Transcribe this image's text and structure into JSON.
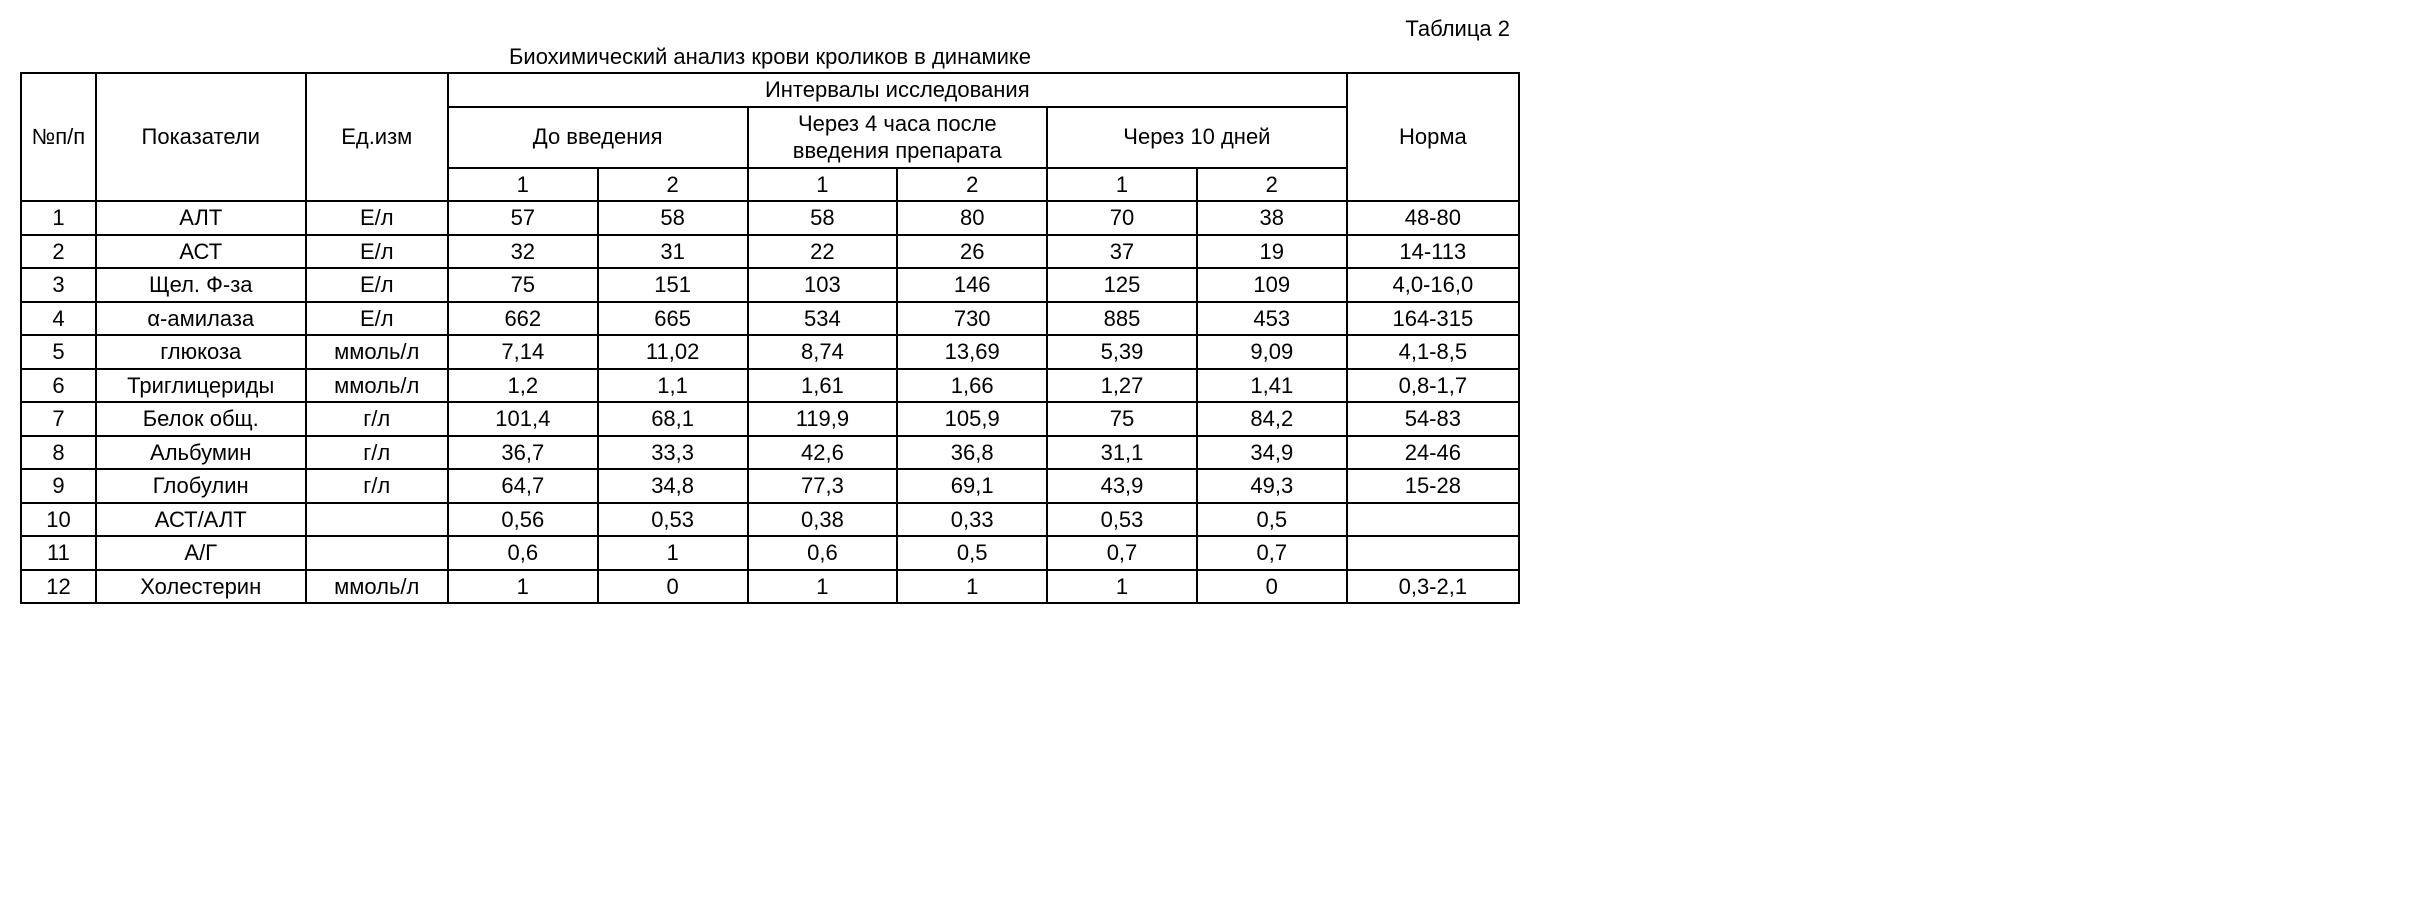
{
  "labels": {
    "table_number": "Таблица 2",
    "caption": "Биохимический анализ крови кроликов в динамике",
    "col_num": "№п/п",
    "col_indicator": "Показатели",
    "col_unit": "Ед.изм",
    "col_intervals": "Интервалы исследования",
    "col_norm": "Норма",
    "interval_before": "До введения",
    "interval_4h": "Через 4 часа после введения препарата",
    "interval_10d": "Через 10 дней",
    "sub_1": "1",
    "sub_2": "2"
  },
  "style": {
    "font_size_pt": 16,
    "border_color": "#000000",
    "background_color": "#ffffff",
    "text_color": "#000000"
  },
  "rows": [
    {
      "n": "1",
      "indicator": "АЛТ",
      "unit": "Е/л",
      "v": [
        "57",
        "58",
        "58",
        "80",
        "70",
        "38"
      ],
      "norm": "48-80"
    },
    {
      "n": "2",
      "indicator": "АСТ",
      "unit": "Е/л",
      "v": [
        "32",
        "31",
        "22",
        "26",
        "37",
        "19"
      ],
      "norm": "14-113"
    },
    {
      "n": "3",
      "indicator": "Щел. Ф-за",
      "unit": "Е/л",
      "v": [
        "75",
        "151",
        "103",
        "146",
        "125",
        "109"
      ],
      "norm": "4,0-16,0"
    },
    {
      "n": "4",
      "indicator": "α-амилаза",
      "unit": "Е/л",
      "v": [
        "662",
        "665",
        "534",
        "730",
        "885",
        "453"
      ],
      "norm": "164-315"
    },
    {
      "n": "5",
      "indicator": "глюкоза",
      "unit": "ммоль/л",
      "v": [
        "7,14",
        "11,02",
        "8,74",
        "13,69",
        "5,39",
        "9,09"
      ],
      "norm": "4,1-8,5"
    },
    {
      "n": "6",
      "indicator": "Триглицериды",
      "unit": "ммоль/л",
      "v": [
        "1,2",
        "1,1",
        "1,61",
        "1,66",
        "1,27",
        "1,41"
      ],
      "norm": "0,8-1,7"
    },
    {
      "n": "7",
      "indicator": "Белок общ.",
      "unit": "г/л",
      "v": [
        "101,4",
        "68,1",
        "119,9",
        "105,9",
        "75",
        "84,2"
      ],
      "norm": "54-83"
    },
    {
      "n": "8",
      "indicator": "Альбумин",
      "unit": "г/л",
      "v": [
        "36,7",
        "33,3",
        "42,6",
        "36,8",
        "31,1",
        "34,9"
      ],
      "norm": "24-46"
    },
    {
      "n": "9",
      "indicator": "Глобулин",
      "unit": "г/л",
      "v": [
        "64,7",
        "34,8",
        "77,3",
        "69,1",
        "43,9",
        "49,3"
      ],
      "norm": "15-28"
    },
    {
      "n": "10",
      "indicator": "АСТ/АЛТ",
      "unit": "",
      "v": [
        "0,56",
        "0,53",
        "0,38",
        "0,33",
        "0,53",
        "0,5"
      ],
      "norm": ""
    },
    {
      "n": "11",
      "indicator": "А/Г",
      "unit": "",
      "v": [
        "0,6",
        "1",
        "0,6",
        "0,5",
        "0,7",
        "0,7"
      ],
      "norm": ""
    },
    {
      "n": "12",
      "indicator": "Холестерин",
      "unit": "ммоль/л",
      "v": [
        "1",
        "0",
        "1",
        "1",
        "1",
        "0"
      ],
      "norm": "0,3-2,1"
    }
  ]
}
